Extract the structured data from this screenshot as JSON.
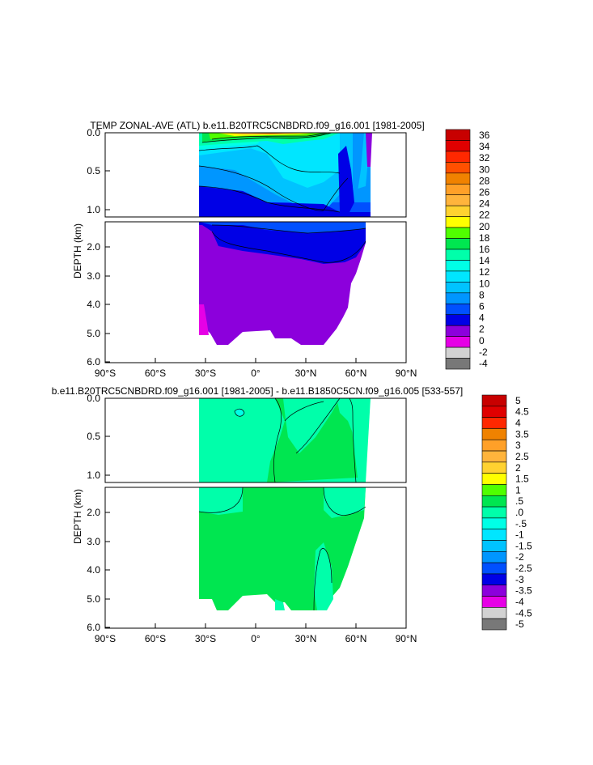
{
  "chart_data": [
    {
      "type": "heatmap",
      "title": "TEMP ZONAL-AVE (ATL) b.e11.B20TRC5CNBDRD.f09_g16.001 [1981-2005]",
      "ylabel": "DEPTH (km)",
      "xlabel": "",
      "x_ticks": [
        "90°S",
        "60°S",
        "30°S",
        "0°",
        "30°N",
        "60°N",
        "90°N"
      ],
      "xlim": [
        -90,
        90
      ],
      "upper_panel_yticks": [
        "0.0",
        "0.5",
        "1.0"
      ],
      "upper_panel_ylim": [
        0.0,
        1.1
      ],
      "lower_panel_yticks": [
        "2.0",
        "3.0",
        "4.0",
        "5.0",
        "6.0"
      ],
      "lower_panel_ylim": [
        1.1,
        6.0
      ],
      "colorbar_labels": [
        "36",
        "34",
        "32",
        "30",
        "28",
        "26",
        "24",
        "22",
        "20",
        "18",
        "16",
        "14",
        "12",
        "10",
        "8",
        "6",
        "4",
        "2",
        "0",
        "-2",
        "-4"
      ],
      "colorbar_colors": [
        "#c80000",
        "#e00000",
        "#ff2800",
        "#ff5000",
        "#f08200",
        "#ffa028",
        "#ffb43c",
        "#ffd230",
        "#ffff00",
        "#50ff00",
        "#00e650",
        "#00ffaa",
        "#00ffe6",
        "#00e6ff",
        "#00c3ff",
        "#0096ff",
        "#0050ff",
        "#0000e6",
        "#8c00dc",
        "#e600e6",
        "#d2d2d2",
        "#787878"
      ]
    },
    {
      "type": "heatmap",
      "title": "b.e11.B20TRC5CNBDRD.f09_g16.001 [1981-2005] - b.e11.B1850C5CN.f09_g16.005 [533-557]",
      "ylabel": "DEPTH (km)",
      "xlabel": "",
      "x_ticks": [
        "90°S",
        "60°S",
        "30°S",
        "0°",
        "30°N",
        "60°N",
        "90°N"
      ],
      "xlim": [
        -90,
        90
      ],
      "upper_panel_yticks": [
        "0.0",
        "0.5",
        "1.0"
      ],
      "upper_panel_ylim": [
        0.0,
        1.1
      ],
      "lower_panel_yticks": [
        "2.0",
        "3.0",
        "4.0",
        "5.0",
        "6.0"
      ],
      "lower_panel_ylim": [
        1.1,
        6.0
      ],
      "colorbar_labels": [
        "5",
        "4.5",
        "4",
        "3.5",
        "3",
        "2.5",
        "2",
        "1.5",
        "1",
        ".5",
        ".0",
        "-.5",
        "-1",
        "-1.5",
        "-2",
        "-2.5",
        "-3",
        "-3.5",
        "-4",
        "-4.5",
        "-5"
      ],
      "colorbar_colors": [
        "#c80000",
        "#e00000",
        "#ff2800",
        "#f08200",
        "#ffa028",
        "#ffb43c",
        "#ffd230",
        "#ffff00",
        "#50ff00",
        "#00e650",
        "#00ffaa",
        "#00ffe6",
        "#00e6ff",
        "#00c3ff",
        "#0096ff",
        "#0050ff",
        "#0000e6",
        "#8c00dc",
        "#e600e6",
        "#d2d2d2",
        "#787878"
      ]
    }
  ]
}
